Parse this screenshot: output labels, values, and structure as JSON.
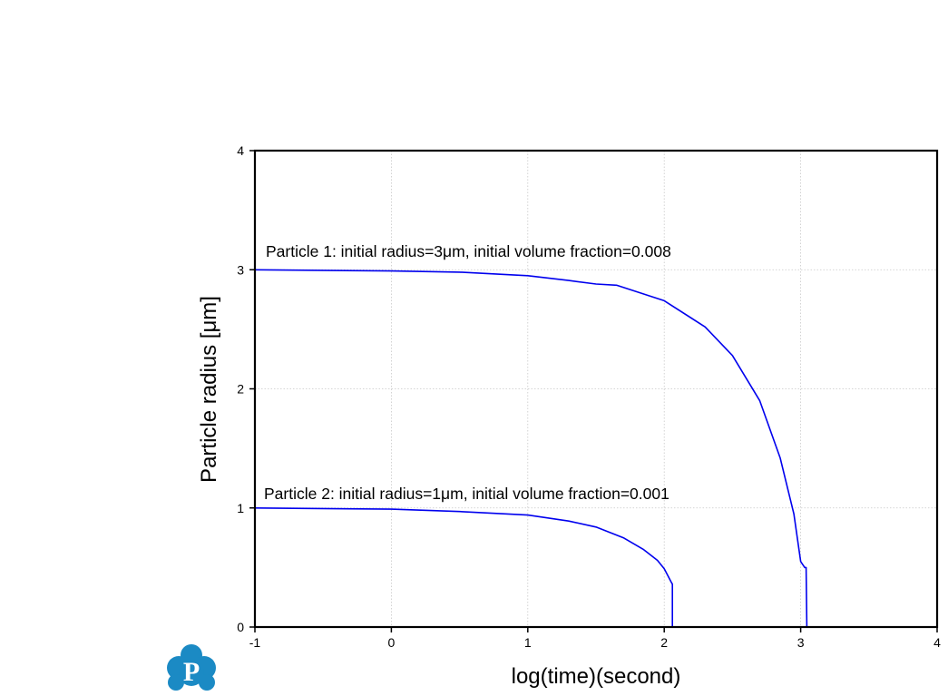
{
  "chart_data": {
    "type": "line",
    "xlabel": "log(time)(second)",
    "ylabel": "Particle radius [μm]",
    "xlim": [
      -1,
      4
    ],
    "ylim": [
      0,
      4
    ],
    "x_ticks": [
      "-1",
      "0",
      "1",
      "2",
      "3",
      "4"
    ],
    "y_ticks": [
      "0",
      "1",
      "2",
      "3",
      "4"
    ],
    "grid": true,
    "annotations": [
      "Particle 1: initial radius=3μm, initial volume fraction=0.008",
      "Particle 2: initial radius=1μm, initial volume fraction=0.001"
    ],
    "line_color": "#0000ee",
    "series": [
      {
        "x": [
          -1,
          0,
          0.5,
          1,
          1.3,
          1.5,
          1.65,
          2.0,
          2.3,
          2.5,
          2.7,
          2.85,
          2.95,
          3.0,
          3.03,
          3.04,
          3.045
        ],
        "y": [
          3.0,
          2.99,
          2.98,
          2.95,
          2.91,
          2.88,
          2.87,
          2.74,
          2.52,
          2.28,
          1.9,
          1.42,
          0.95,
          0.55,
          0.5,
          0.5,
          0
        ]
      },
      {
        "x": [
          -1,
          0,
          0.5,
          1,
          1.3,
          1.5,
          1.7,
          1.85,
          1.95,
          2.0,
          2.05,
          2.06,
          2.06
        ],
        "y": [
          1.0,
          0.99,
          0.97,
          0.94,
          0.89,
          0.84,
          0.75,
          0.65,
          0.56,
          0.49,
          0.38,
          0.36,
          0
        ]
      }
    ]
  },
  "logo": {
    "glyph": "P",
    "color": "#1b8ac4"
  }
}
